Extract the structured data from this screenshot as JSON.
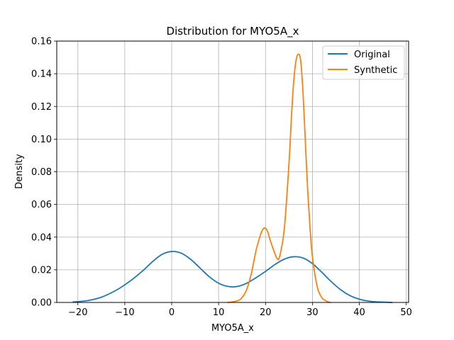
{
  "chart_data": {
    "type": "line",
    "title": "Distribution for MYO5A_x",
    "xlabel": "MYO5A_x",
    "ylabel": "Density",
    "xlim": [
      -24.5,
      50.5
    ],
    "ylim": [
      0,
      0.16
    ],
    "xticks": [
      -20,
      -10,
      0,
      10,
      20,
      30,
      40,
      50
    ],
    "yticks": [
      0.0,
      0.02,
      0.04,
      0.06,
      0.08,
      0.1,
      0.12,
      0.14,
      0.16
    ],
    "xtick_labels": [
      "−20",
      "−10",
      "0",
      "10",
      "20",
      "30",
      "40",
      "50"
    ],
    "ytick_labels": [
      "0.00",
      "0.02",
      "0.04",
      "0.06",
      "0.08",
      "0.10",
      "0.12",
      "0.14",
      "0.16"
    ],
    "grid": true,
    "legend_position": "top-right",
    "series": [
      {
        "name": "Original",
        "color": "#1f77b4",
        "x": [
          -21,
          -18,
          -15,
          -12,
          -10,
          -8,
          -6,
          -4,
          -2,
          0,
          2,
          4,
          6,
          8,
          10,
          12,
          14,
          16,
          18,
          20,
          22,
          24,
          26,
          28,
          30,
          32,
          34,
          36,
          38,
          40,
          42,
          44,
          46,
          47
        ],
        "y": [
          0.0003,
          0.0011,
          0.0032,
          0.0072,
          0.0108,
          0.015,
          0.0198,
          0.0252,
          0.0295,
          0.0312,
          0.0302,
          0.0265,
          0.0212,
          0.0158,
          0.0118,
          0.0098,
          0.0098,
          0.0118,
          0.0152,
          0.019,
          0.0232,
          0.0265,
          0.028,
          0.0272,
          0.0238,
          0.0185,
          0.0128,
          0.0078,
          0.0042,
          0.002,
          0.0008,
          0.0003,
          0.0001,
          0.0
        ]
      },
      {
        "name": "Synthetic",
        "color": "#ff7f0e",
        "x": [
          12.0,
          14.0,
          15.0,
          16.0,
          17.0,
          18.0,
          19.0,
          19.5,
          20.0,
          20.5,
          21.0,
          22.0,
          22.5,
          23.0,
          24.0,
          25.0,
          25.5,
          26.0,
          26.5,
          27.0,
          27.5,
          28.0,
          28.5,
          29.0,
          29.5,
          30.0,
          31.0,
          32.0,
          33.0,
          33.8
        ],
        "y": [
          0.0,
          0.001,
          0.003,
          0.008,
          0.018,
          0.032,
          0.042,
          0.045,
          0.0455,
          0.043,
          0.038,
          0.03,
          0.0268,
          0.028,
          0.045,
          0.085,
          0.112,
          0.135,
          0.148,
          0.152,
          0.148,
          0.128,
          0.098,
          0.068,
          0.045,
          0.028,
          0.01,
          0.003,
          0.0008,
          0.0
        ]
      }
    ]
  }
}
